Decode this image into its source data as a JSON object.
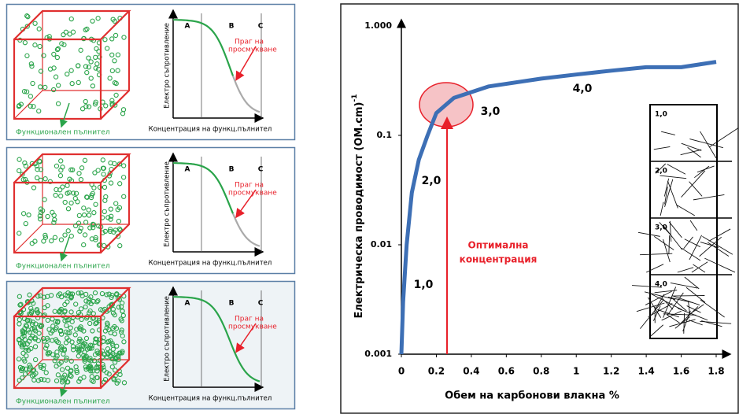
{
  "panels": [
    {
      "filler_label": "Функционален пълнител",
      "y_label": "Електро съпротивление",
      "x_label": "Концентрация на функц.пълнител",
      "regions": [
        "A",
        "B",
        "C"
      ],
      "threshold": [
        "Праг на",
        "просмукване"
      ]
    },
    {
      "filler_label": "Функционален пълнител",
      "y_label": "Електро съпротивление",
      "x_label": "Концентрация на функц.пълнител",
      "regions": [
        "A",
        "B",
        "C"
      ],
      "threshold": [
        "Праг  на",
        "просмукване"
      ]
    },
    {
      "filler_label": "Функционален пълнител",
      "y_label": "Електро съпротивление",
      "x_label": "Концентрация на функц.пълнител",
      "regions": [
        "A",
        "B",
        "C"
      ],
      "threshold": [
        "Праг на",
        "просмукване"
      ]
    }
  ],
  "chart_data": {
    "type": "line",
    "x_label": "Обем на карбонови влакна %",
    "y_label": "Електрическа проводимост  (OM.cm)",
    "y_label_sup": "-1",
    "log_y": true,
    "xlim": [
      0,
      1.8
    ],
    "xticks": [
      0,
      0.2,
      0.4,
      0.6,
      0.8,
      1,
      1.2,
      1.4,
      1.6,
      1.8
    ],
    "ylim": [
      0.001,
      1
    ],
    "yticks": [
      0.001,
      0.01,
      0.1,
      {
        "value": 1,
        "label": "1.000"
      }
    ],
    "series": [
      {
        "color": "#3d6fb5",
        "x": [
          0,
          0.01,
          0.03,
          0.06,
          0.1,
          0.15,
          0.2,
          0.3,
          0.5,
          0.8,
          1.0,
          1.2,
          1.4,
          1.6,
          1.8
        ],
        "values": [
          0.001,
          0.003,
          0.01,
          0.03,
          0.06,
          0.1,
          0.16,
          0.22,
          0.28,
          0.33,
          0.36,
          0.39,
          0.42,
          0.42,
          0.47
        ]
      }
    ],
    "annotations": [
      "1,0",
      "2,0",
      "3,0",
      "4,0"
    ],
    "optimum_label": [
      "Оптимална",
      "концентрация"
    ],
    "insets": [
      "1,0",
      "2,0",
      "3,0",
      "4,0"
    ]
  }
}
